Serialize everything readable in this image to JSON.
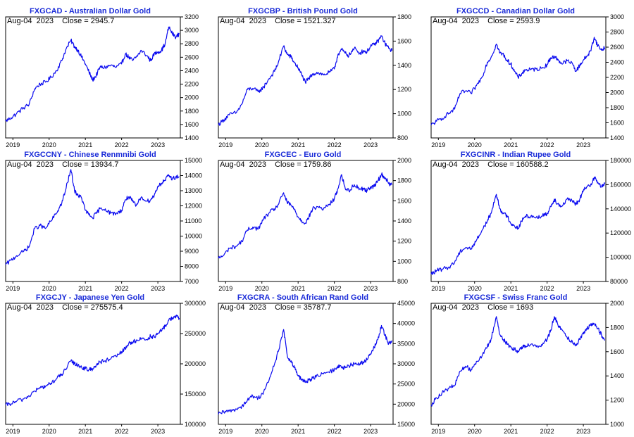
{
  "chart_data": [
    {
      "type": "line",
      "title": "FXGCAD - Australian Dollar Gold",
      "date": "Aug-04  2023",
      "close_label": "Close = 2945.7",
      "ylim": [
        1400,
        3200
      ],
      "yticks": [
        1400,
        1600,
        1800,
        2000,
        2200,
        2400,
        2600,
        2800,
        3000,
        3200
      ],
      "xlim": [
        2018.8,
        2023.62
      ],
      "xticks": [
        "2019",
        "2020",
        "2021",
        "2022",
        "2023"
      ],
      "series": [
        {
          "x": [
            2018.8,
            2018.95,
            2019.1,
            2019.3,
            2019.45,
            2019.6,
            2019.75,
            2019.9,
            2020.05,
            2020.2,
            2020.35,
            2020.45,
            2020.6,
            2020.7,
            2020.8,
            2020.9,
            2021.0,
            2021.1,
            2021.2,
            2021.3,
            2021.4,
            2021.55,
            2021.7,
            2021.85,
            2022.0,
            2022.1,
            2022.2,
            2022.3,
            2022.4,
            2022.55,
            2022.7,
            2022.8,
            2022.9,
            2023.0,
            2023.1,
            2023.2,
            2023.3,
            2023.4,
            2023.5,
            2023.59
          ],
          "values": [
            1650,
            1700,
            1760,
            1850,
            1900,
            2130,
            2200,
            2230,
            2300,
            2400,
            2550,
            2700,
            2850,
            2760,
            2700,
            2600,
            2500,
            2380,
            2260,
            2330,
            2450,
            2450,
            2480,
            2450,
            2500,
            2650,
            2600,
            2550,
            2600,
            2700,
            2620,
            2550,
            2650,
            2680,
            2700,
            2800,
            3050,
            2950,
            2900,
            2945.7
          ]
        }
      ]
    },
    {
      "type": "line",
      "title": "FXGCBP - British Pound Gold",
      "date": "Aug-04  2023",
      "close_label": "Close = 1521.327",
      "ylim": [
        800,
        1800
      ],
      "yticks": [
        800,
        1000,
        1200,
        1400,
        1600,
        1800
      ],
      "xlim": [
        2018.8,
        2023.62
      ],
      "xticks": [
        "2019",
        "2020",
        "2021",
        "2022",
        "2023"
      ],
      "series": [
        {
          "x": [
            2018.8,
            2018.95,
            2019.1,
            2019.3,
            2019.45,
            2019.6,
            2019.75,
            2019.9,
            2020.05,
            2020.2,
            2020.35,
            2020.45,
            2020.6,
            2020.7,
            2020.8,
            2020.9,
            2021.0,
            2021.1,
            2021.2,
            2021.3,
            2021.4,
            2021.55,
            2021.7,
            2021.85,
            2022.0,
            2022.1,
            2022.2,
            2022.3,
            2022.4,
            2022.55,
            2022.7,
            2022.8,
            2022.9,
            2023.0,
            2023.1,
            2023.2,
            2023.3,
            2023.4,
            2023.5,
            2023.59
          ],
          "values": [
            910,
            950,
            990,
            1010,
            1080,
            1200,
            1210,
            1180,
            1220,
            1290,
            1350,
            1420,
            1560,
            1490,
            1470,
            1420,
            1380,
            1320,
            1260,
            1290,
            1330,
            1340,
            1320,
            1340,
            1370,
            1490,
            1530,
            1500,
            1480,
            1540,
            1500,
            1520,
            1510,
            1560,
            1570,
            1600,
            1640,
            1580,
            1540,
            1521.3
          ]
        }
      ]
    },
    {
      "type": "line",
      "title": "FXGCCD - Canadian Dollar Gold",
      "date": "Aug-04  2023",
      "close_label": "Close = 2593.9",
      "ylim": [
        1400,
        3000
      ],
      "yticks": [
        1400,
        1600,
        1800,
        2000,
        2200,
        2400,
        2600,
        2800,
        3000
      ],
      "xlim": [
        2018.8,
        2023.62
      ],
      "xticks": [
        "2019",
        "2020",
        "2021",
        "2022",
        "2023"
      ],
      "series": [
        {
          "x": [
            2018.8,
            2018.95,
            2019.1,
            2019.3,
            2019.45,
            2019.6,
            2019.75,
            2019.9,
            2020.05,
            2020.2,
            2020.35,
            2020.45,
            2020.6,
            2020.7,
            2020.8,
            2020.9,
            2021.0,
            2021.1,
            2021.2,
            2021.3,
            2021.4,
            2021.55,
            2021.7,
            2021.85,
            2022.0,
            2022.1,
            2022.2,
            2022.3,
            2022.4,
            2022.55,
            2022.7,
            2022.8,
            2022.9,
            2023.0,
            2023.1,
            2023.2,
            2023.3,
            2023.4,
            2023.5,
            2023.59
          ],
          "values": [
            1570,
            1620,
            1660,
            1730,
            1780,
            1990,
            2020,
            1990,
            2090,
            2200,
            2400,
            2460,
            2640,
            2520,
            2500,
            2420,
            2380,
            2280,
            2200,
            2250,
            2300,
            2300,
            2310,
            2320,
            2370,
            2460,
            2470,
            2440,
            2380,
            2420,
            2380,
            2280,
            2360,
            2430,
            2480,
            2550,
            2730,
            2620,
            2560,
            2593.9
          ]
        }
      ]
    },
    {
      "type": "line",
      "title": "FXGCCNY - Chinese Renmnibi Gold",
      "date": "Aug-04  2023",
      "close_label": "Close = 13934.7",
      "ylim": [
        7000,
        15000
      ],
      "yticks": [
        7000,
        8000,
        9000,
        10000,
        11000,
        12000,
        13000,
        14000,
        15000
      ],
      "xlim": [
        2018.8,
        2023.62
      ],
      "xticks": [
        "2019",
        "2020",
        "2021",
        "2022",
        "2023"
      ],
      "series": [
        {
          "x": [
            2018.8,
            2018.95,
            2019.1,
            2019.3,
            2019.45,
            2019.6,
            2019.75,
            2019.9,
            2020.05,
            2020.2,
            2020.35,
            2020.45,
            2020.6,
            2020.7,
            2020.8,
            2020.9,
            2021.0,
            2021.1,
            2021.2,
            2021.3,
            2021.4,
            2021.55,
            2021.7,
            2021.85,
            2022.0,
            2022.1,
            2022.2,
            2022.3,
            2022.4,
            2022.55,
            2022.7,
            2022.8,
            2022.9,
            2023.0,
            2023.1,
            2023.2,
            2023.3,
            2023.4,
            2023.5,
            2023.59
          ],
          "values": [
            8100,
            8400,
            8700,
            9000,
            9300,
            10500,
            10700,
            10500,
            11000,
            11500,
            12200,
            13000,
            14400,
            13000,
            12700,
            12500,
            11700,
            11400,
            11200,
            11500,
            11800,
            11800,
            11500,
            11500,
            11700,
            12400,
            12600,
            12300,
            12000,
            12600,
            12300,
            12400,
            12700,
            13300,
            13500,
            13700,
            14000,
            13800,
            13900,
            13934.7
          ]
        }
      ]
    },
    {
      "type": "line",
      "title": "FXGCEC - Euro Gold",
      "date": "Aug-04  2023",
      "close_label": "Close = 1759.86",
      "ylim": [
        800,
        2000
      ],
      "yticks": [
        800,
        1000,
        1200,
        1400,
        1600,
        1800,
        2000
      ],
      "xlim": [
        2018.8,
        2023.62
      ],
      "xticks": [
        "2019",
        "2020",
        "2021",
        "2022",
        "2023"
      ],
      "series": [
        {
          "x": [
            2018.8,
            2018.95,
            2019.1,
            2019.3,
            2019.45,
            2019.6,
            2019.75,
            2019.9,
            2020.05,
            2020.2,
            2020.35,
            2020.45,
            2020.6,
            2020.7,
            2020.8,
            2020.9,
            2021.0,
            2021.1,
            2021.2,
            2021.3,
            2021.4,
            2021.55,
            2021.7,
            2021.85,
            2022.0,
            2022.1,
            2022.2,
            2022.3,
            2022.4,
            2022.55,
            2022.7,
            2022.8,
            2022.9,
            2023.0,
            2023.1,
            2023.2,
            2023.3,
            2023.4,
            2023.5,
            2023.59
          ],
          "values": [
            1030,
            1060,
            1130,
            1150,
            1200,
            1310,
            1340,
            1320,
            1420,
            1480,
            1520,
            1560,
            1680,
            1580,
            1560,
            1510,
            1440,
            1400,
            1380,
            1440,
            1520,
            1540,
            1520,
            1560,
            1620,
            1720,
            1860,
            1720,
            1700,
            1760,
            1720,
            1720,
            1700,
            1740,
            1740,
            1800,
            1860,
            1830,
            1770,
            1759.9
          ]
        }
      ]
    },
    {
      "type": "line",
      "title": "FXGCINR - Indian Rupee Gold",
      "date": "Aug-04  2023",
      "close_label": "Close = 160588.2",
      "ylim": [
        80000,
        180000
      ],
      "yticks": [
        80000,
        100000,
        120000,
        140000,
        160000,
        180000
      ],
      "xlim": [
        2018.8,
        2023.62
      ],
      "xticks": [
        "2019",
        "2020",
        "2021",
        "2022",
        "2023"
      ],
      "series": [
        {
          "x": [
            2018.8,
            2018.95,
            2019.1,
            2019.3,
            2019.45,
            2019.6,
            2019.75,
            2019.9,
            2020.05,
            2020.2,
            2020.35,
            2020.45,
            2020.6,
            2020.7,
            2020.8,
            2020.9,
            2021.0,
            2021.1,
            2021.2,
            2021.3,
            2021.4,
            2021.55,
            2021.7,
            2021.85,
            2022.0,
            2022.1,
            2022.2,
            2022.3,
            2022.4,
            2022.55,
            2022.7,
            2022.8,
            2022.9,
            2023.0,
            2023.1,
            2023.2,
            2023.3,
            2023.4,
            2023.5,
            2023.59
          ],
          "values": [
            86000,
            89000,
            90000,
            92000,
            96000,
            105000,
            108000,
            107000,
            114000,
            122000,
            130000,
            136000,
            152000,
            140000,
            136000,
            134000,
            128000,
            126000,
            124000,
            130000,
            134000,
            134000,
            133000,
            134000,
            136000,
            142000,
            148000,
            144000,
            142000,
            148000,
            146000,
            144000,
            148000,
            155000,
            158000,
            160000,
            166000,
            162000,
            158000,
            160588.2
          ]
        }
      ]
    },
    {
      "type": "line",
      "title": "FXGCJY - Japanese Yen Gold",
      "date": "Aug-04  2023",
      "close_label": "Close = 275575.4",
      "ylim": [
        100000,
        300000
      ],
      "yticks": [
        100000,
        150000,
        200000,
        250000,
        300000
      ],
      "xlim": [
        2018.8,
        2023.62
      ],
      "xticks": [
        "2019",
        "2020",
        "2021",
        "2022",
        "2023"
      ],
      "series": [
        {
          "x": [
            2018.8,
            2018.95,
            2019.1,
            2019.3,
            2019.45,
            2019.6,
            2019.75,
            2019.9,
            2020.05,
            2020.2,
            2020.35,
            2020.45,
            2020.6,
            2020.7,
            2020.8,
            2020.9,
            2021.0,
            2021.1,
            2021.2,
            2021.3,
            2021.4,
            2021.55,
            2021.7,
            2021.85,
            2022.0,
            2022.1,
            2022.2,
            2022.3,
            2022.4,
            2022.55,
            2022.7,
            2022.8,
            2022.9,
            2023.0,
            2023.1,
            2023.2,
            2023.3,
            2023.4,
            2023.5,
            2023.59
          ],
          "values": [
            132000,
            134000,
            138000,
            142000,
            147000,
            155000,
            160000,
            163000,
            168000,
            175000,
            183000,
            190000,
            205000,
            200000,
            198000,
            194000,
            192000,
            190000,
            192000,
            198000,
            203000,
            205000,
            208000,
            212000,
            220000,
            225000,
            234000,
            236000,
            238000,
            242000,
            240000,
            246000,
            244000,
            250000,
            255000,
            262000,
            272000,
            276000,
            278000,
            275575.4
          ]
        }
      ]
    },
    {
      "type": "line",
      "title": "FXGCRA - South African Rand Gold",
      "date": "Aug-04  2023",
      "close_label": "Close = 35787.7",
      "ylim": [
        15000,
        45000
      ],
      "yticks": [
        15000,
        20000,
        25000,
        30000,
        35000,
        40000,
        45000
      ],
      "xlim": [
        2018.8,
        2023.62
      ],
      "xticks": [
        "2019",
        "2020",
        "2021",
        "2022",
        "2023"
      ],
      "series": [
        {
          "x": [
            2018.8,
            2018.95,
            2019.1,
            2019.3,
            2019.45,
            2019.6,
            2019.75,
            2019.9,
            2020.05,
            2020.2,
            2020.35,
            2020.45,
            2020.6,
            2020.7,
            2020.8,
            2020.9,
            2021.0,
            2021.1,
            2021.2,
            2021.3,
            2021.4,
            2021.55,
            2021.7,
            2021.85,
            2022.0,
            2022.1,
            2022.2,
            2022.3,
            2022.4,
            2022.55,
            2022.7,
            2022.8,
            2022.9,
            2023.0,
            2023.1,
            2023.2,
            2023.3,
            2023.4,
            2023.5,
            2023.59
          ],
          "values": [
            17500,
            18000,
            18300,
            18800,
            19500,
            21000,
            22000,
            21500,
            23000,
            26000,
            30000,
            33000,
            38500,
            32000,
            30500,
            29000,
            27000,
            26000,
            25500,
            26000,
            26500,
            27000,
            27500,
            28000,
            28500,
            29500,
            29000,
            29000,
            29500,
            30000,
            30000,
            30500,
            31000,
            32500,
            34000,
            36000,
            39500,
            37000,
            35000,
            35787.7
          ]
        }
      ]
    },
    {
      "type": "line",
      "title": "FXGCSF - Swiss Franc Gold",
      "date": "Aug-04  2023",
      "close_label": "Close = 1693",
      "ylim": [
        1000,
        2000
      ],
      "yticks": [
        1000,
        1200,
        1400,
        1600,
        1800,
        2000
      ],
      "xlim": [
        2018.8,
        2023.62
      ],
      "xticks": [
        "2019",
        "2020",
        "2021",
        "2022",
        "2023"
      ],
      "series": [
        {
          "x": [
            2018.8,
            2018.95,
            2019.1,
            2019.3,
            2019.45,
            2019.6,
            2019.75,
            2019.9,
            2020.05,
            2020.2,
            2020.35,
            2020.45,
            2020.6,
            2020.7,
            2020.8,
            2020.9,
            2021.0,
            2021.1,
            2021.2,
            2021.3,
            2021.4,
            2021.55,
            2021.7,
            2021.85,
            2022.0,
            2022.1,
            2022.2,
            2022.3,
            2022.4,
            2022.55,
            2022.7,
            2022.8,
            2022.9,
            2023.0,
            2023.1,
            2023.2,
            2023.3,
            2023.4,
            2023.5,
            2023.59
          ],
          "values": [
            1160,
            1220,
            1260,
            1300,
            1320,
            1440,
            1480,
            1450,
            1520,
            1560,
            1640,
            1700,
            1890,
            1740,
            1700,
            1660,
            1640,
            1620,
            1600,
            1640,
            1650,
            1660,
            1640,
            1660,
            1700,
            1780,
            1890,
            1820,
            1790,
            1720,
            1680,
            1660,
            1700,
            1760,
            1790,
            1820,
            1830,
            1790,
            1740,
            1693
          ]
        }
      ]
    }
  ]
}
